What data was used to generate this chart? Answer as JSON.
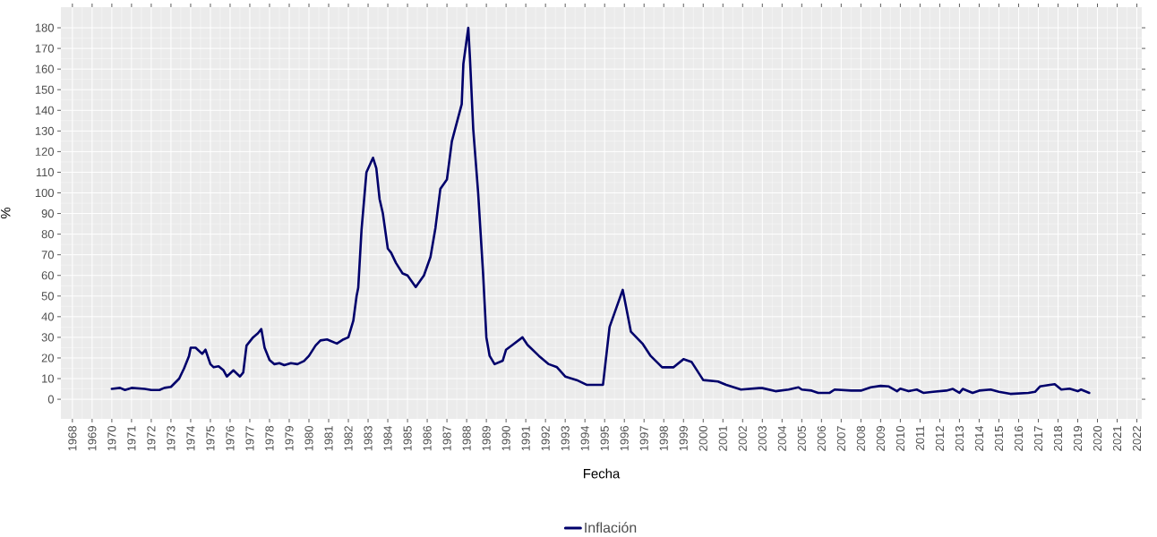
{
  "chart_data": {
    "type": "line",
    "xlabel": "Fecha",
    "ylabel": "%",
    "xlim": [
      "1967-06",
      "2022-04"
    ],
    "ylim": [
      -9.5,
      190
    ],
    "xticks": [
      "1968",
      "1969",
      "1970",
      "1971",
      "1972",
      "1973",
      "1974",
      "1975",
      "1976",
      "1977",
      "1978",
      "1979",
      "1980",
      "1981",
      "1982",
      "1983",
      "1984",
      "1985",
      "1986",
      "1987",
      "1988",
      "1989",
      "1990",
      "1991",
      "1992",
      "1993",
      "1994",
      "1995",
      "1996",
      "1997",
      "1998",
      "1999",
      "2000",
      "2001",
      "2002",
      "2003",
      "2004",
      "2005",
      "2006",
      "2007",
      "2008",
      "2009",
      "2010",
      "2011",
      "2012",
      "2013",
      "2014",
      "2015",
      "2016",
      "2017",
      "2018",
      "2019",
      "2020",
      "2021",
      "2022"
    ],
    "yticks": [
      0,
      10,
      20,
      30,
      40,
      50,
      60,
      70,
      80,
      90,
      100,
      110,
      120,
      130,
      140,
      150,
      160,
      170,
      180
    ],
    "grid": true,
    "legend": "bottom",
    "line_style": "solid",
    "series": [
      {
        "name": "Inflación",
        "color": "#00006b",
        "x": [
          "1970-01",
          "1970-06",
          "1970-09",
          "1971-01",
          "1971-09",
          "1972-01",
          "1972-06",
          "1972-09",
          "1973-01",
          "1973-06",
          "1973-09",
          "1973-12",
          "1974-01",
          "1974-04",
          "1974-08",
          "1974-10",
          "1975-01",
          "1975-03",
          "1975-06",
          "1975-09",
          "1975-11",
          "1976-03",
          "1976-07",
          "1976-09",
          "1976-11",
          "1977-03",
          "1977-06",
          "1977-08",
          "1977-10",
          "1978-01",
          "1978-04",
          "1978-07",
          "1978-10",
          "1979-02",
          "1979-06",
          "1979-10",
          "1980-01",
          "1980-05",
          "1980-08",
          "1980-12",
          "1981-03",
          "1981-06",
          "1981-10",
          "1982-01",
          "1982-04",
          "1982-06",
          "1982-07",
          "1982-09",
          "1982-12",
          "1983-04",
          "1983-06",
          "1983-08",
          "1983-10",
          "1984-01",
          "1984-03",
          "1984-06",
          "1984-10",
          "1985-01",
          "1985-06",
          "1985-11",
          "1986-03",
          "1986-06",
          "1986-09",
          "1987-01",
          "1987-04",
          "1987-07",
          "1987-10",
          "1987-11",
          "1988-02",
          "1988-03",
          "1988-05",
          "1988-08",
          "1988-11",
          "1989-01",
          "1989-03",
          "1989-06",
          "1989-11",
          "1990-01",
          "1990-05",
          "1990-11",
          "1991-02",
          "1991-09",
          "1992-03",
          "1992-08",
          "1993-01",
          "1993-08",
          "1994-02",
          "1994-12",
          "1995-04",
          "1995-08",
          "1995-12",
          "1996-01",
          "1996-05",
          "1996-12",
          "1997-05",
          "1997-12",
          "1998-07",
          "1999-01",
          "1999-06",
          "2000-01",
          "2000-10",
          "2001-03",
          "2001-12",
          "2002-11",
          "2003-01",
          "2003-09",
          "2004-05",
          "2004-11",
          "2005-01",
          "2005-07",
          "2005-11",
          "2006-06",
          "2006-09",
          "2007-07",
          "2008-01",
          "2008-07",
          "2009-01",
          "2009-06",
          "2009-11",
          "2010-01",
          "2010-06",
          "2010-11",
          "2011-03",
          "2011-09",
          "2012-05",
          "2012-09",
          "2013-01",
          "2013-03",
          "2013-09",
          "2014-01",
          "2014-08",
          "2015-01",
          "2015-08",
          "2016-07",
          "2016-11",
          "2017-02",
          "2017-08",
          "2017-11",
          "2018-03",
          "2018-08",
          "2019-01",
          "2019-03",
          "2019-08"
        ],
        "values": [
          5,
          5.5,
          4.5,
          5.5,
          5,
          4.5,
          4.5,
          5.5,
          6,
          10,
          15,
          21,
          25,
          25,
          22,
          24,
          17,
          15.5,
          16,
          14,
          11,
          14,
          11,
          13,
          26,
          30,
          32,
          34,
          25,
          19,
          17,
          17.5,
          16.5,
          17.5,
          17,
          18.5,
          21,
          26,
          28.5,
          29,
          28,
          27,
          29,
          30,
          38,
          50,
          54,
          82,
          110,
          117,
          112,
          97,
          90,
          73,
          71,
          66,
          61,
          60,
          54.4,
          60,
          69,
          83,
          102,
          106.5,
          125,
          134,
          143,
          162.5,
          180,
          165.6,
          131,
          100,
          61,
          30,
          21,
          17,
          18.7,
          24,
          26.4,
          30,
          26.4,
          21,
          17,
          15.5,
          11,
          9.3,
          7,
          7,
          35,
          44,
          53,
          49,
          32.7,
          27,
          21,
          15.5,
          15.5,
          19.4,
          18,
          9.3,
          8.6,
          7,
          4.7,
          5.4,
          5.4,
          3.9,
          4.7,
          5.8,
          4.7,
          4.2,
          3.1,
          3.1,
          4.7,
          4.2,
          4.2,
          5.8,
          6.5,
          6.2,
          3.9,
          5.1,
          3.9,
          4.7,
          3.1,
          3.6,
          4.2,
          5,
          3.1,
          5,
          3.1,
          4.2,
          4.7,
          3.6,
          2.6,
          3.1,
          3.6,
          6.2,
          7,
          7.3,
          4.7,
          5.1,
          3.9,
          4.7,
          3.1
        ]
      }
    ]
  }
}
